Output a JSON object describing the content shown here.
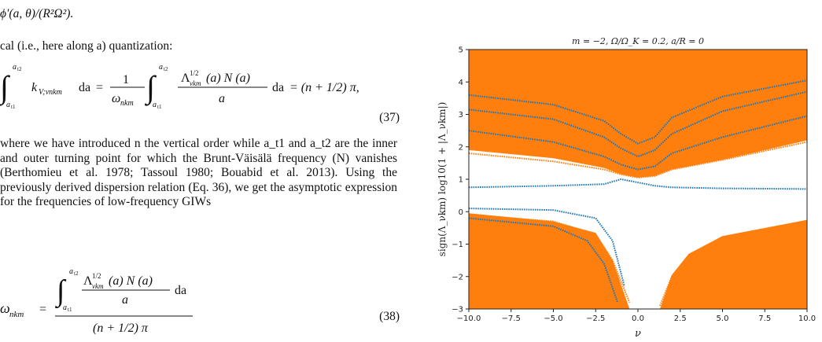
{
  "text": {
    "top_formula": "ϕ′(a, θ)/(R²Ω²).",
    "intro_line": "cal (i.e., here along a) quantization:",
    "eq37": {
      "lhs_integrand": "k",
      "lhs_sub": "V;νnkm",
      "da": "da",
      "equals": "=",
      "coef_num": "1",
      "coef_den": "ω",
      "coef_den_sub": "nkm",
      "frac_num_lambda": "Λ",
      "frac_num_pow": "1/2",
      "frac_num_sub": "νkm",
      "frac_num_rest": "(a) N (a)",
      "frac_den": "a",
      "rhs": "= (n + 1/2) π,",
      "lower": "a",
      "lower_sub": "t1",
      "upper": "a",
      "upper_sub": "t2",
      "number": "(37)"
    },
    "paragraph": "where we have introduced n the vertical order while a_t1 and a_t2 are the inner and outer turning point for which the Brunt-Väisälä frequency (N) vanishes (Berthomieu et al. 1978; Tassoul 1980; Bouabid et al. 2013). Using the previously derived dispersion relation (Eq. 36), we get the asymptotic expression for the frequencies of low-frequency GIWs",
    "eq38": {
      "lhs": "ω",
      "lhs_sub": "nkm",
      "equals": "=",
      "num_lambda": "Λ",
      "num_pow": "1/2",
      "num_sub": "νkm",
      "num_rest": "(a) N (a)",
      "num_den": "a",
      "da": "da",
      "den": "(n + 1/2) π",
      "lower": "a",
      "lower_sub": "t1",
      "upper": "a",
      "upper_sub": "t2",
      "number": "(38)"
    }
  },
  "chart_data": {
    "type": "scatter",
    "title": "m = −2, Ω/Ω_K = 0.2, a/R = 0",
    "xlabel": "ν",
    "ylabel": "sign(Λ_νkm) log10(1 + |Λ_νkm|)",
    "xlim": [
      -10,
      10
    ],
    "ylim": [
      -3,
      5
    ],
    "xticks": [
      -10.0,
      -7.5,
      -5.0,
      -2.5,
      0.0,
      2.5,
      5.0,
      7.5,
      10.0
    ],
    "xtick_labels": [
      "−10.0",
      "−7.5",
      "−5.0",
      "−2.5",
      "0.0",
      "2.5",
      "5.0",
      "7.5",
      "10.0"
    ],
    "yticks": [
      -3,
      -2,
      -1,
      0,
      1,
      2,
      3,
      4,
      5
    ],
    "ytick_labels": [
      "−3",
      "−2",
      "−1",
      "0",
      "1",
      "2",
      "3",
      "4",
      "5"
    ],
    "grid": false,
    "colors": {
      "orange": "#ff7f0e",
      "blue": "#1f77b4"
    },
    "series": [
      {
        "color": "blue",
        "x": [
          -10,
          -5,
          -2,
          -1,
          0,
          1,
          2,
          5,
          10
        ],
        "y": [
          0.75,
          0.8,
          0.85,
          1.0,
          0.9,
          0.8,
          0.75,
          0.72,
          0.7
        ]
      },
      {
        "color": "orange",
        "x": [
          -10,
          -5,
          -2,
          -1,
          0,
          1,
          2,
          5,
          10
        ],
        "y": [
          1.8,
          1.55,
          1.3,
          1.15,
          1.05,
          1.1,
          1.3,
          1.6,
          2.15
        ]
      },
      {
        "color": "blue",
        "x": [
          -10,
          -5,
          -2,
          -1,
          0,
          1,
          2,
          5,
          10
        ],
        "y": [
          2.5,
          2.15,
          1.7,
          1.45,
          1.3,
          1.4,
          1.8,
          2.3,
          2.95
        ]
      },
      {
        "color": "orange",
        "x": [
          -10,
          -5,
          -2,
          -1,
          0,
          1,
          2,
          5,
          10
        ],
        "y": [
          2.85,
          2.5,
          2.0,
          1.7,
          1.5,
          1.65,
          2.1,
          2.8,
          3.4
        ]
      },
      {
        "color": "blue",
        "x": [
          -10,
          -5,
          -2,
          -1,
          0,
          1,
          2,
          5,
          10
        ],
        "y": [
          3.15,
          2.85,
          2.3,
          1.95,
          1.7,
          1.9,
          2.4,
          3.1,
          3.7
        ]
      },
      {
        "color": "orange",
        "x": [
          -10,
          -5,
          -2,
          -1,
          0,
          1,
          2,
          5,
          10
        ],
        "y": [
          3.4,
          3.1,
          2.55,
          2.2,
          1.9,
          2.1,
          2.65,
          3.35,
          3.9
        ]
      },
      {
        "color": "blue",
        "x": [
          -10,
          -5,
          -2,
          -1,
          0,
          1,
          2,
          5,
          10
        ],
        "y": [
          3.6,
          3.3,
          2.8,
          2.4,
          2.1,
          2.3,
          2.9,
          3.55,
          4.05
        ]
      },
      {
        "color": "blue",
        "x": [
          -10,
          -5,
          -2.5,
          -1.5,
          -0.8
        ],
        "y": [
          0.1,
          0.05,
          -0.2,
          -0.9,
          -2.3
        ]
      },
      {
        "color": "orange",
        "x": [
          -10,
          -5,
          -2.5,
          -1.5,
          -0.5
        ],
        "y": [
          -0.1,
          -0.3,
          -0.7,
          -1.5,
          -2.8
        ]
      },
      {
        "color": "blue",
        "x": [
          -10,
          -5,
          -3,
          -2,
          -1.2
        ],
        "y": [
          -0.2,
          -0.45,
          -0.9,
          -1.6,
          -2.8
        ]
      },
      {
        "color": "orange",
        "x": [
          1.3,
          2,
          3,
          5,
          10
        ],
        "y": [
          -2.9,
          -2.0,
          -1.35,
          -0.8,
          -0.3
        ]
      },
      {
        "color": "orange",
        "x": [
          1.6,
          2.3,
          3.3,
          5.3,
          10
        ],
        "y": [
          -2.95,
          -2.1,
          -1.5,
          -1.0,
          -0.5
        ]
      }
    ]
  }
}
